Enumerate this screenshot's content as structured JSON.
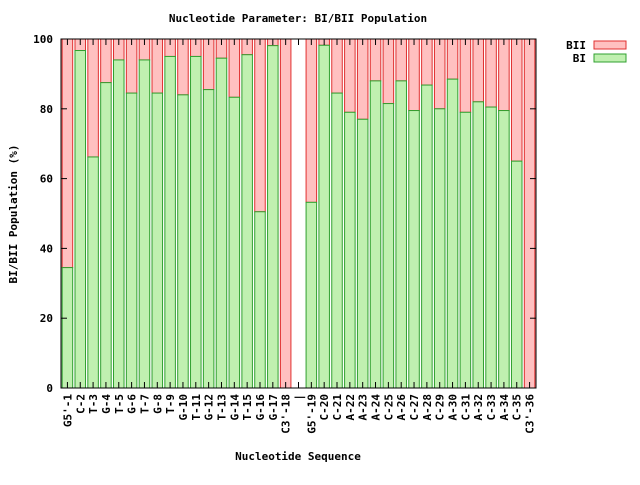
{
  "chart_data": {
    "type": "bar",
    "stacked": true,
    "title": "Nucleotide Parameter: BI/BII Population",
    "xlabel": "Nucleotide Sequence",
    "ylabel": "BI/BII Population (%)",
    "ylim": [
      0,
      100
    ],
    "yticks": [
      0,
      20,
      40,
      60,
      80,
      100
    ],
    "legend_position": "top-right (outside plot)",
    "grid": false,
    "categories": [
      "G5'-1",
      "C-2",
      "T-3",
      "G-4",
      "T-5",
      "G-6",
      "T-7",
      "G-8",
      "T-9",
      "G-10",
      "T-11",
      "G-12",
      "T-13",
      "G-14",
      "T-15",
      "G-16",
      "G-17",
      "C3'-18",
      "|",
      "G5'-19",
      "C-20",
      "C-21",
      "A-22",
      "A-23",
      "A-24",
      "C-25",
      "A-26",
      "C-27",
      "A-28",
      "C-29",
      "A-30",
      "C-31",
      "A-32",
      "C-33",
      "A-34",
      "C-35",
      "C3'-36"
    ],
    "series": [
      {
        "name": "BII",
        "color": "#ffc0c0",
        "stroke": "#e03030",
        "values": [
          65.5,
          3.3,
          33.8,
          12.5,
          6,
          15.5,
          6,
          15.5,
          5,
          16,
          5,
          14.5,
          5.5,
          16.7,
          4.5,
          49.5,
          1.9,
          100,
          null,
          46.8,
          1.8,
          15.5,
          21,
          23,
          12,
          18.5,
          12,
          20.5,
          13.2,
          20,
          11.5,
          21,
          18,
          19.5,
          20.5,
          35,
          100
        ]
      },
      {
        "name": "BI",
        "color": "#c0f0b0",
        "stroke": "#30a030",
        "values": [
          34.5,
          96.7,
          66.2,
          87.5,
          94,
          84.5,
          94,
          84.5,
          95,
          84,
          95,
          85.5,
          94.5,
          83.3,
          95.5,
          50.5,
          98.1,
          0,
          null,
          53.2,
          98.2,
          84.5,
          79,
          77,
          88,
          81.5,
          88,
          79.5,
          86.8,
          80,
          88.5,
          79,
          82,
          80.5,
          79.5,
          65,
          0
        ]
      }
    ]
  }
}
